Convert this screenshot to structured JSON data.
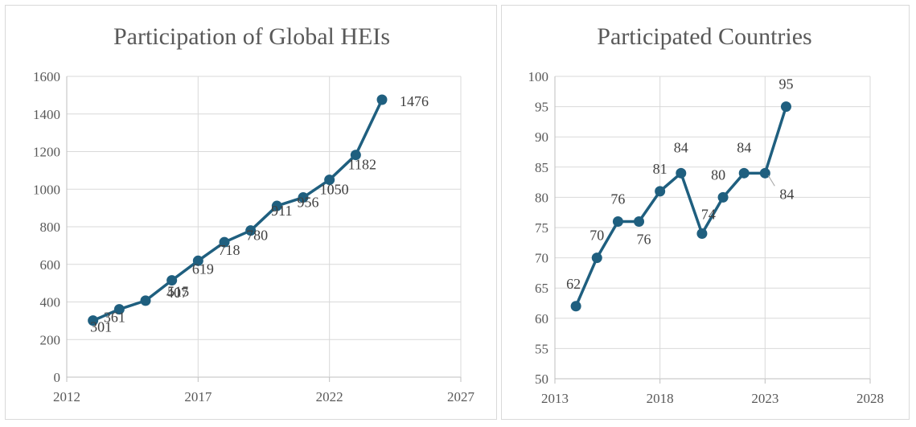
{
  "chart_data": [
    {
      "type": "scatter",
      "title": "Participation of Global HEIs",
      "xlabel": "",
      "ylabel": "",
      "xlim": [
        2012,
        2027
      ],
      "ylim": [
        0,
        1600
      ],
      "x_ticks": [
        2012,
        2017,
        2022,
        2027
      ],
      "y_ticks": [
        0,
        200,
        400,
        600,
        800,
        1000,
        1200,
        1400,
        1600
      ],
      "grid": true,
      "legend": "none",
      "color": "#1f5f7f",
      "series": [
        {
          "x": [
            2013,
            2014,
            2015,
            2016,
            2017,
            2018,
            2019,
            2020,
            2021,
            2022,
            2023,
            2024
          ],
          "y": [
            301,
            361,
            407,
            515,
            619,
            718,
            780,
            911,
            956,
            1050,
            1182,
            1476
          ],
          "labels": [
            "301",
            "361",
            "407",
            "515",
            "619",
            "718",
            "780",
            "911",
            "956",
            "1050",
            "1182",
            "1476"
          ]
        }
      ]
    },
    {
      "type": "scatter",
      "title": "Participated Countries",
      "xlabel": "",
      "ylabel": "",
      "xlim": [
        2013,
        2028
      ],
      "ylim": [
        50,
        100
      ],
      "x_ticks": [
        2013,
        2018,
        2023,
        2028
      ],
      "y_ticks": [
        50,
        55,
        60,
        65,
        70,
        75,
        80,
        85,
        90,
        95,
        100
      ],
      "grid": true,
      "legend": "none",
      "color": "#1f5f7f",
      "series": [
        {
          "x": [
            2014,
            2015,
            2016,
            2017,
            2018,
            2019,
            2020,
            2021,
            2022,
            2023,
            2024
          ],
          "y": [
            62,
            70,
            76,
            76,
            81,
            84,
            74,
            80,
            84,
            84,
            95
          ],
          "labels": [
            "62",
            "70",
            "76",
            "76",
            "81",
            "84",
            "74",
            "80",
            "84",
            "84",
            "95"
          ]
        }
      ]
    }
  ]
}
